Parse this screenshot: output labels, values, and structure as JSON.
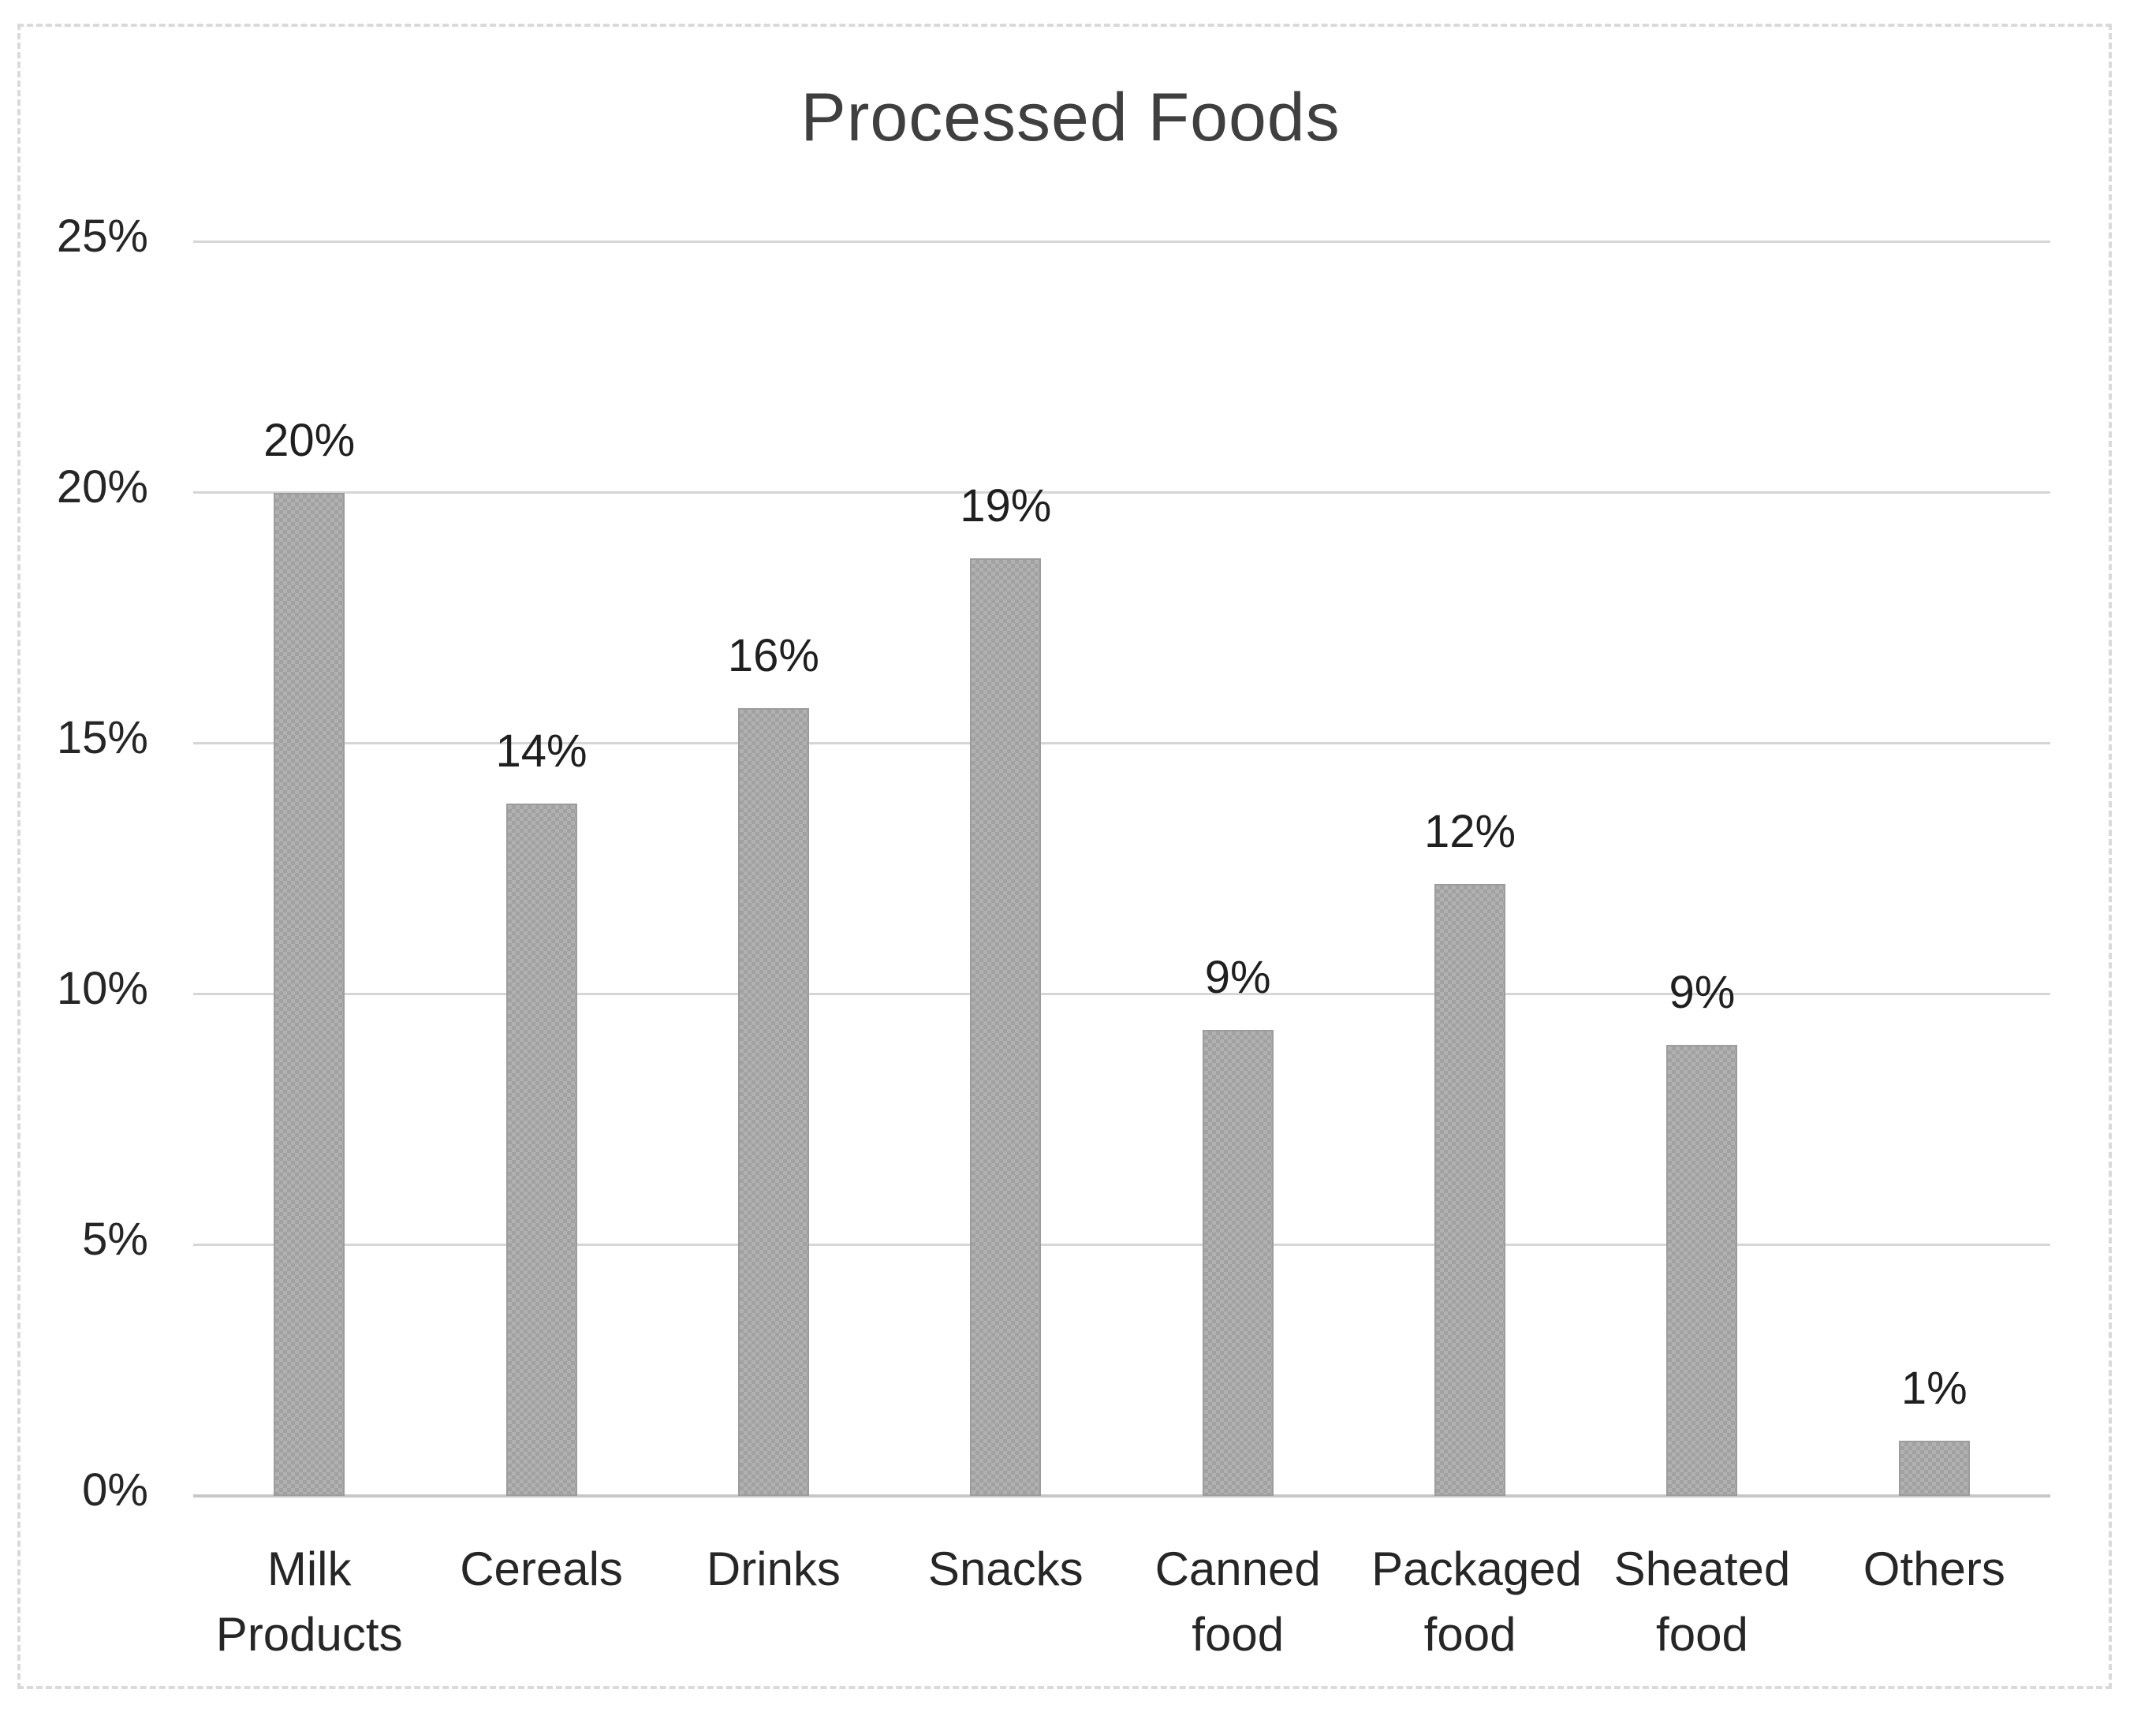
{
  "figure": {
    "background_color": "#ffffff",
    "border_color": "#dadada",
    "border_style": "dashed"
  },
  "chart_data": {
    "type": "bar",
    "title": "Processed Foods",
    "categories": [
      "Milk Products",
      "Cereals",
      "Drinks",
      "Snacks",
      "Canned food",
      "Packaged food",
      "Sheated food",
      "Others"
    ],
    "values": [
      20,
      14,
      16,
      19,
      9,
      12,
      9,
      1
    ],
    "data_labels": [
      "20%",
      "14%",
      "16%",
      "19%",
      "9%",
      "12%",
      "9%",
      "1%"
    ],
    "bar_heights_pct": [
      20,
      13.8,
      15.7,
      18.7,
      9.3,
      12.2,
      9.0,
      1.1
    ],
    "xlabel": "",
    "ylabel": "",
    "y_axis": {
      "min": 0,
      "max": 25,
      "step": 5,
      "ticks": [
        "0%",
        "5%",
        "10%",
        "15%",
        "20%",
        "25%"
      ]
    },
    "grid": true,
    "legend": false,
    "bar_color": "#a9a9a9",
    "bar_pattern": "checkerboard",
    "gridline_color": "#d6d6d6",
    "axis_text_color": "#262626",
    "title_color": "#3f3f3f"
  }
}
